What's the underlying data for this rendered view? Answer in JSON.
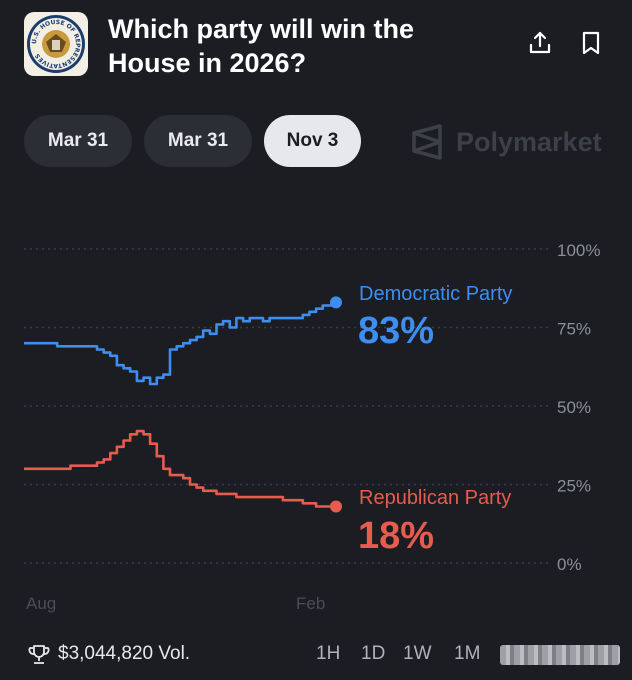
{
  "header": {
    "title": "Which party will win the House in 2026?",
    "seal_text": "U.S. HOUSE OF REPRESENTATIVES",
    "share_icon": "share-icon",
    "bookmark_icon": "bookmark-icon"
  },
  "date_tabs": [
    {
      "label": "Mar 31",
      "active": false
    },
    {
      "label": "Mar 31",
      "active": false
    },
    {
      "label": "Nov 3",
      "active": true
    }
  ],
  "brand": {
    "name": "Polymarket",
    "logo_icon": "polymarket-logo-icon"
  },
  "chart_data": {
    "type": "line",
    "y_ticks": [
      "100%",
      "75%",
      "50%",
      "25%",
      "0%"
    ],
    "ylim": [
      0,
      100
    ],
    "x_ticks": [
      "Aug",
      "Feb"
    ],
    "grid": true,
    "series": [
      {
        "name": "Democratic Party",
        "current_label": "83%",
        "color": "#3d8ef0",
        "values": [
          70,
          70,
          70,
          70,
          70,
          69,
          69,
          69,
          69,
          69,
          69,
          68,
          67,
          66,
          63,
          62,
          61,
          58,
          59,
          57,
          59,
          60,
          68,
          69,
          70,
          71,
          72,
          74,
          73,
          76,
          77,
          75,
          78,
          77,
          78,
          78,
          77,
          78,
          78,
          78,
          78,
          78,
          79,
          80,
          81,
          82,
          82,
          83
        ]
      },
      {
        "name": "Republican Party",
        "current_label": "18%",
        "color": "#e65c4f",
        "values": [
          30,
          30,
          30,
          30,
          30,
          30,
          30,
          31,
          31,
          31,
          31,
          32,
          33,
          35,
          37,
          39,
          41,
          42,
          41,
          38,
          34,
          30,
          28,
          28,
          27,
          25,
          24,
          23,
          23,
          22,
          22,
          22,
          21,
          21,
          21,
          21,
          21,
          21,
          21,
          20,
          20,
          20,
          19,
          19,
          18,
          18,
          18,
          18
        ]
      }
    ]
  },
  "footer": {
    "volume": "$3,044,820 Vol.",
    "trophy_icon": "trophy-icon",
    "ranges": [
      "1H",
      "1D",
      "1W",
      "1M"
    ]
  }
}
